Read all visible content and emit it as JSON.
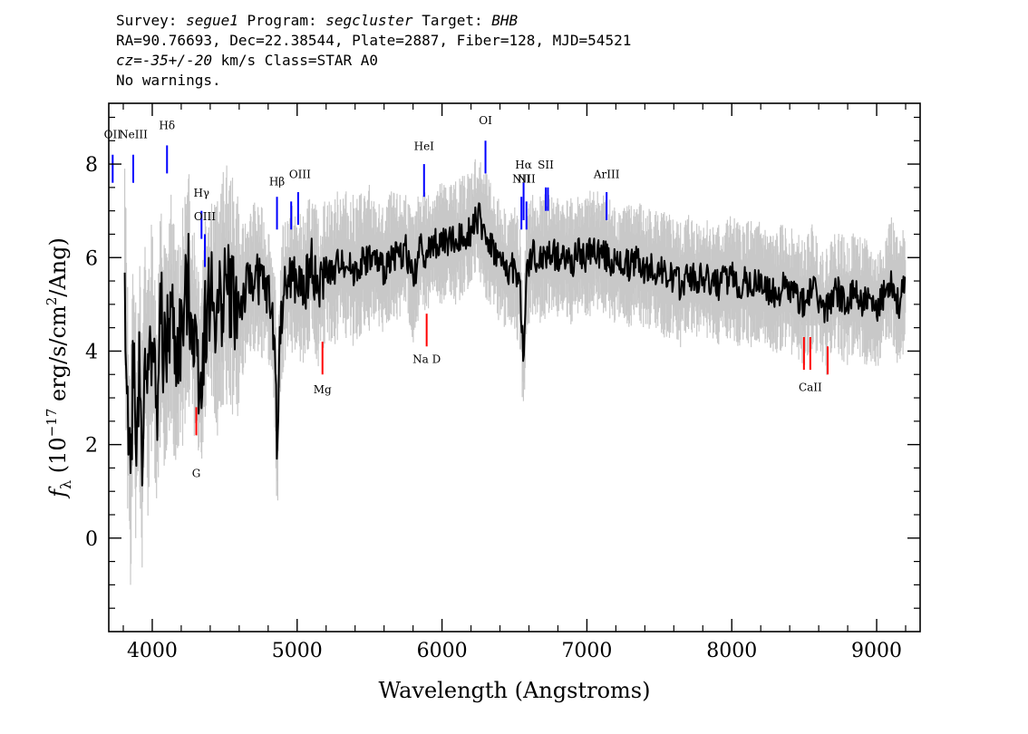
{
  "header": {
    "line1": {
      "survey_label": "Survey:",
      "survey": "segue1",
      "program_label": "Program:",
      "program": "segcluster",
      "target_label": "Target:",
      "target": "BHB"
    },
    "line2": "RA=90.76693, Dec=22.38544, Plate=2887, Fiber=128, MJD=54521",
    "line3": {
      "cz": "cz=-35+/-20",
      "rest": " km/s Class=STAR A0"
    },
    "line4": "No warnings."
  },
  "colors": {
    "flux": "#000000",
    "error": "#c8c8c8",
    "emission": "#0000ff",
    "absorption": "#ff0000"
  },
  "chart_data": {
    "type": "line",
    "xlabel": "Wavelength (Angstroms)",
    "ylabel": "f_λ (10^-17 erg/s/cm^2/Ang)",
    "xlim": [
      3700,
      9300
    ],
    "ylim": [
      -2.0,
      9.3
    ],
    "x_ticks": [
      4000,
      5000,
      6000,
      7000,
      8000,
      9000
    ],
    "y_ticks": [
      0,
      2,
      4,
      6,
      8
    ],
    "series": [
      {
        "role": "flux",
        "x": [
          3810,
          3830,
          3850,
          3870,
          3890,
          3910,
          3930,
          3950,
          3970,
          4000,
          4030,
          4060,
          4080,
          4102,
          4130,
          4160,
          4200,
          4250,
          4300,
          4340,
          4360,
          4400,
          4450,
          4500,
          4550,
          4600,
          4650,
          4700,
          4750,
          4800,
          4830,
          4850,
          4861,
          4875,
          4900,
          4950,
          5000,
          5050,
          5100,
          5150,
          5175,
          5200,
          5250,
          5300,
          5350,
          5400,
          5450,
          5500,
          5550,
          5600,
          5650,
          5700,
          5750,
          5800,
          5850,
          5900,
          5950,
          6000,
          6050,
          6100,
          6150,
          6200,
          6230,
          6260,
          6300,
          6350,
          6400,
          6450,
          6500,
          6540,
          6563,
          6580,
          6620,
          6650,
          6700,
          6750,
          6800,
          6850,
          6900,
          6950,
          7000,
          7050,
          7100,
          7150,
          7200,
          7250,
          7300,
          7350,
          7400,
          7450,
          7500,
          7550,
          7600,
          7650,
          7700,
          7750,
          7800,
          7850,
          7900,
          7950,
          8000,
          8050,
          8100,
          8150,
          8200,
          8250,
          8300,
          8350,
          8400,
          8450,
          8500,
          8550,
          8600,
          8650,
          8700,
          8750,
          8800,
          8850,
          8900,
          8950,
          9000,
          9050,
          9100,
          9150,
          9200
        ],
        "y": [
          5.8,
          3.0,
          1.2,
          4.2,
          2.1,
          3.8,
          1.8,
          4.5,
          3.0,
          4.6,
          2.6,
          4.8,
          3.9,
          4.0,
          4.9,
          3.9,
          4.3,
          5.4,
          4.1,
          3.4,
          4.6,
          5.2,
          4.7,
          5.5,
          5.2,
          4.9,
          5.3,
          5.6,
          5.5,
          5.2,
          4.7,
          3.8,
          1.6,
          3.9,
          5.1,
          5.6,
          5.4,
          5.3,
          5.9,
          5.2,
          5.5,
          5.8,
          5.6,
          6.0,
          5.8,
          5.7,
          5.9,
          6.0,
          5.9,
          5.7,
          6.1,
          6.0,
          6.2,
          5.5,
          6.2,
          6.1,
          6.3,
          6.3,
          6.4,
          6.3,
          6.5,
          6.6,
          6.9,
          6.8,
          6.5,
          6.2,
          5.9,
          5.7,
          5.8,
          5.3,
          3.6,
          5.6,
          6.1,
          5.9,
          6.0,
          6.1,
          6.0,
          6.0,
          5.9,
          6.1,
          6.0,
          6.2,
          6.1,
          6.0,
          5.8,
          5.9,
          5.8,
          6.0,
          5.7,
          5.8,
          5.7,
          5.6,
          5.6,
          5.4,
          5.7,
          5.5,
          5.6,
          5.5,
          5.4,
          5.5,
          5.6,
          5.4,
          5.5,
          5.4,
          5.5,
          5.3,
          5.2,
          5.4,
          5.3,
          5.2,
          5.0,
          5.4,
          5.1,
          4.8,
          5.3,
          5.2,
          5.0,
          5.3,
          5.1,
          5.0,
          4.8,
          5.2,
          5.6,
          5.0,
          5.4
        ],
        "noise_amplitude": 0.35
      }
    ],
    "error_band_halfwidth": 0.9,
    "emission_lines": [
      {
        "label": "OII",
        "x": 3727,
        "y": [
          7.6,
          8.2
        ],
        "label_y": 8.55
      },
      {
        "label": "NeIII",
        "x": 3869,
        "y": [
          7.6,
          8.2
        ],
        "label_y": 8.55
      },
      {
        "label": "Hδ",
        "x": 4102,
        "y": [
          7.8,
          8.4
        ],
        "label_y": 8.75
      },
      {
        "label": "Hγ",
        "x": 4340,
        "y": [
          6.4,
          7.0
        ],
        "label_y": 7.3
      },
      {
        "label": "OIII",
        "x": 4363,
        "y": [
          5.8,
          6.5
        ],
        "label_y": 6.8
      },
      {
        "label": "Hβ",
        "x": 4861,
        "y": [
          6.6,
          7.3
        ],
        "label_y": 7.55
      },
      {
        "label": "OIII",
        "x": 4959,
        "y": [
          6.6,
          7.2
        ],
        "label_y": 7.7
      },
      {
        "label": "OIII",
        "x": 5007,
        "y": [
          6.7,
          7.4
        ],
        "label_y": 7.7
      },
      {
        "label": "HeI",
        "x": 5876,
        "y": [
          7.3,
          8.0
        ],
        "label_y": 8.3
      },
      {
        "label": "OI",
        "x": 6300,
        "y": [
          7.8,
          8.5
        ],
        "label_y": 8.85
      },
      {
        "label": "NII",
        "x": 6548,
        "y": [
          6.6,
          7.3
        ],
        "label_y": 7.6
      },
      {
        "label": "Hα",
        "x": 6563,
        "y": [
          6.8,
          7.6
        ],
        "label_y": 7.9
      },
      {
        "label": "NII",
        "x": 6583,
        "y": [
          6.6,
          7.2
        ],
        "label_y": 7.6
      },
      {
        "label": "SII",
        "x": 6716,
        "y": [
          7.0,
          7.5
        ],
        "label_y": 7.9
      },
      {
        "label": "SII",
        "x": 6731,
        "y": [
          7.0,
          7.5
        ],
        "label_y": 7.9
      },
      {
        "label": "ArIII",
        "x": 7136,
        "y": [
          6.8,
          7.4
        ],
        "label_y": 7.7
      }
    ],
    "absorption_lines": [
      {
        "label": "G",
        "x": 4304,
        "y": [
          2.2,
          2.8
        ],
        "label_y": 1.3
      },
      {
        "label": "Mg",
        "x": 5175,
        "y": [
          3.5,
          4.2
        ],
        "label_y": 3.1
      },
      {
        "label": "Na D",
        "x": 5894,
        "y": [
          4.1,
          4.8
        ],
        "label_y": 3.75
      },
      {
        "label": "CaII",
        "x": 8498,
        "y": [
          3.6,
          4.3
        ],
        "label_y": 3.15
      },
      {
        "label": "CaII",
        "x": 8542,
        "y": [
          3.6,
          4.3
        ],
        "label_y": 3.15
      },
      {
        "label": "CaII",
        "x": 8662,
        "y": [
          3.5,
          4.1
        ],
        "label_y": 3.15
      }
    ]
  }
}
